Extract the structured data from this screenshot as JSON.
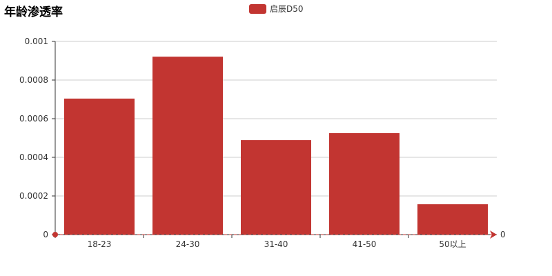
{
  "chart_data": {
    "type": "bar",
    "title": "年龄渗透率",
    "categories": [
      "18-23",
      "24-30",
      "31-40",
      "41-50",
      "50以上"
    ],
    "series": [
      {
        "name": "启辰D50",
        "values": [
          0.000704,
          0.000921,
          0.000489,
          0.000525,
          0.000157
        ],
        "color": "#c23531"
      }
    ],
    "ylim": [
      0,
      0.001
    ],
    "yticks": [
      "0",
      "0.0002",
      "0.0004",
      "0.0006",
      "0.0008",
      "0.001"
    ],
    "grid": true,
    "legend_position": "top-center",
    "mark_line": {
      "value": "0",
      "color": "#c23531"
    }
  }
}
